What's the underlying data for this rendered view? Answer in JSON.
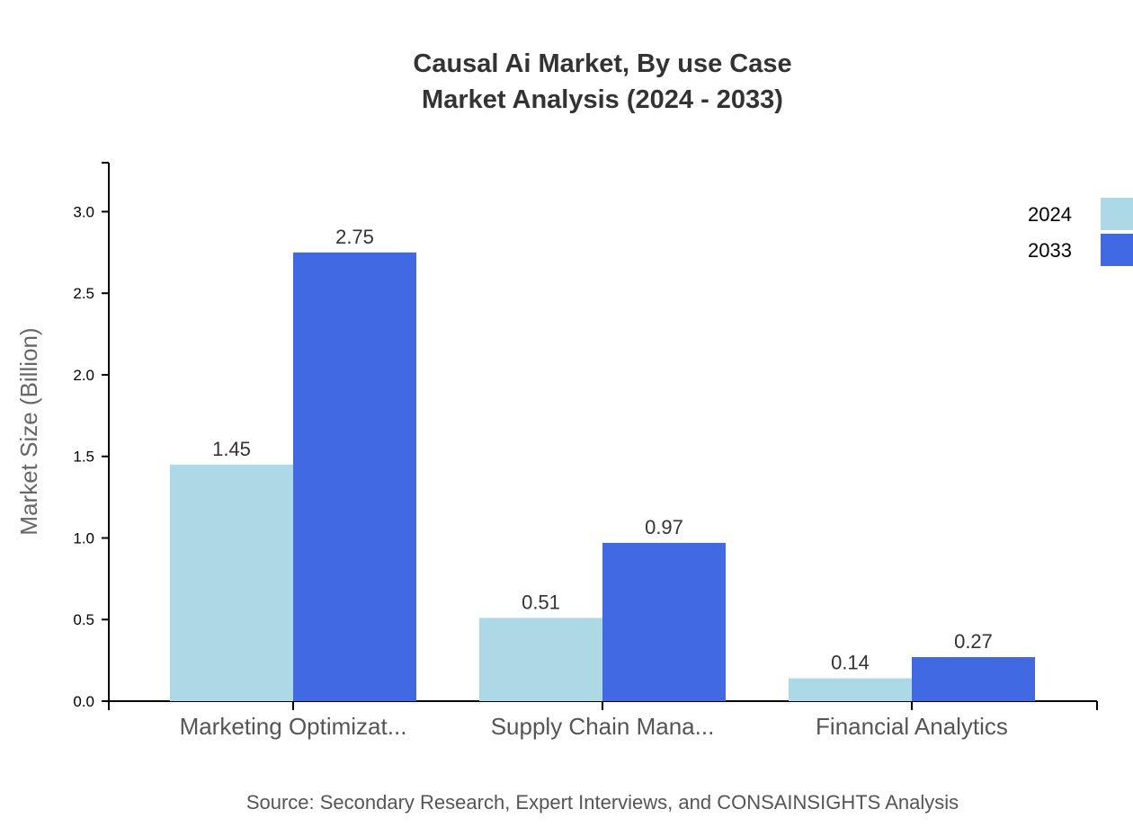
{
  "chart_data": {
    "type": "bar",
    "title": "Causal Ai Market, By use Case",
    "subtitle": "Market Analysis (2024 - 2033)",
    "xlabel": "",
    "ylabel": "Market Size (Billion)",
    "ylim": [
      0,
      3.3
    ],
    "yticks": [
      "0.0",
      "0.5",
      "1.0",
      "1.5",
      "2.0",
      "2.5",
      "3.0"
    ],
    "categories": [
      "Marketing Optimizat...",
      "Supply Chain Mana...",
      "Financial Analytics"
    ],
    "series": [
      {
        "name": "2024",
        "color": "#ADD8E6",
        "values": [
          1.45,
          0.51,
          0.14
        ],
        "labels": [
          "1.45",
          "0.51",
          "0.14"
        ]
      },
      {
        "name": "2033",
        "color": "#4169E1",
        "values": [
          2.75,
          0.97,
          0.27
        ],
        "labels": [
          "2.75",
          "0.97",
          "0.27"
        ]
      }
    ],
    "legend_position": "top-right",
    "grid": false
  },
  "source": "Source: Secondary Research, Expert Interviews, and CONSAINSIGHTS Analysis"
}
